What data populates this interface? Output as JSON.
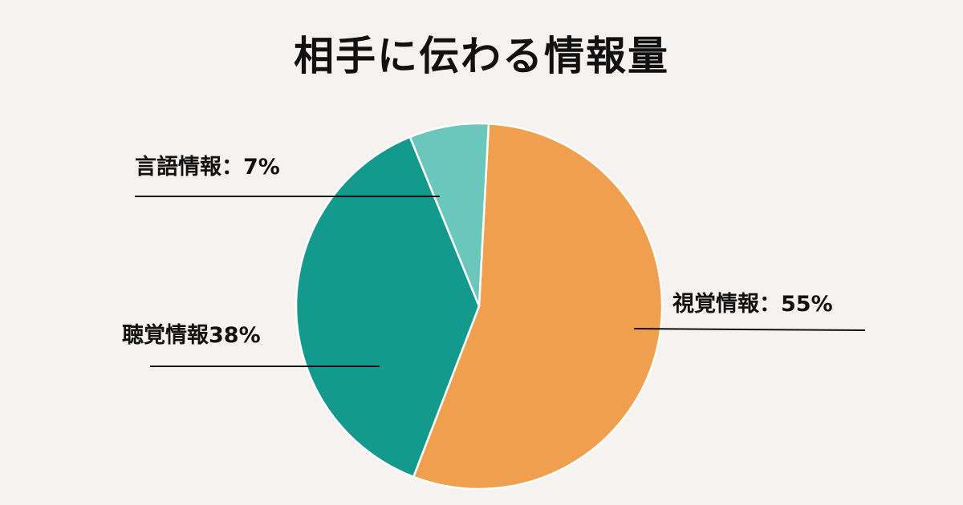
{
  "chart_data": {
    "type": "pie",
    "title": "相手に伝わる情報量",
    "slices": [
      {
        "label": "視覚情報：55%",
        "value": 55,
        "color": "#ef9f4d"
      },
      {
        "label": "聴覚情報38%",
        "value": 38,
        "color": "#14998d"
      },
      {
        "label": "言語情報：7%",
        "value": 7,
        "color": "#6bc6bc"
      }
    ]
  }
}
